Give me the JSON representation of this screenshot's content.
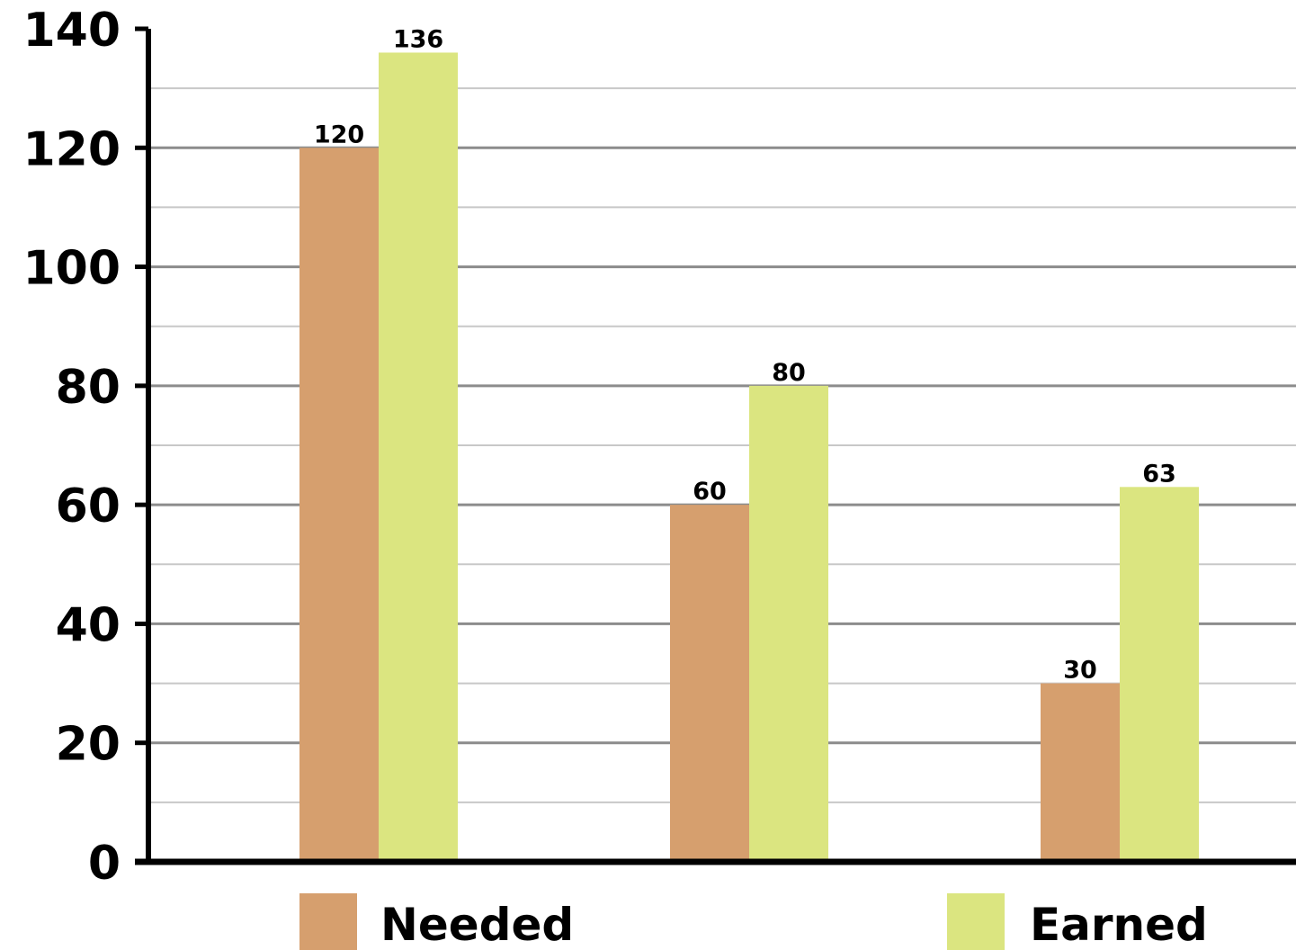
{
  "chart_data": {
    "type": "bar",
    "title": "",
    "xlabel": "",
    "ylabel": "",
    "categories": [
      "",
      "",
      ""
    ],
    "ylim": [
      0,
      140
    ],
    "major_ticks": [
      0,
      20,
      40,
      60,
      80,
      100,
      120,
      140
    ],
    "minor_gridlines": [
      10,
      30,
      50,
      70,
      90,
      110,
      130
    ],
    "grid": true,
    "legend_position": "bottom",
    "series": [
      {
        "name": "Needed",
        "values": [
          120,
          60,
          30
        ],
        "color": "#d69f6e"
      },
      {
        "name": "Earned",
        "values": [
          136,
          80,
          63
        ],
        "color": "#dbe580"
      }
    ],
    "data_labels": true
  },
  "colors": {
    "axis": "#000000",
    "major_grid": "#8c8c8c",
    "minor_grid": "#c8c8c8",
    "background": "#ffffff"
  }
}
